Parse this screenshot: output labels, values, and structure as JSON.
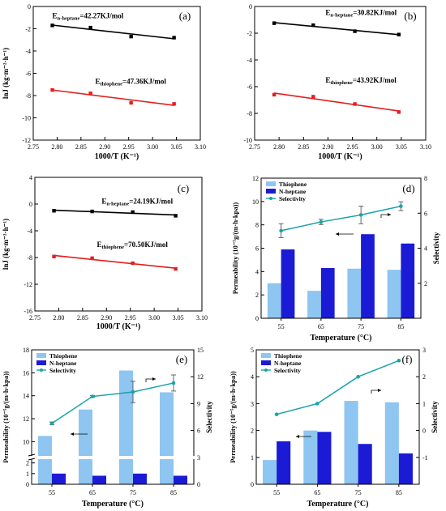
{
  "chart_data": [
    {
      "panel": "(a)",
      "type": "scatter",
      "xlabel": "1000/T (K⁻¹)",
      "ylabel": "lnJ (kg·m⁻²·h⁻¹)",
      "xlim": [
        2.75,
        3.1
      ],
      "ylim": [
        -12,
        0
      ],
      "xticks": [
        "2.75",
        "2.80",
        "2.85",
        "2.90",
        "2.95",
        "3.00",
        "3.05",
        "3.10"
      ],
      "yticks": [
        "0",
        "-2",
        "-4",
        "-6",
        "-8",
        "-10",
        "-12"
      ],
      "series": [
        {
          "color": "#000000",
          "x": [
            2.79,
            2.87,
            2.955,
            3.045
          ],
          "y": [
            -1.7,
            -1.9,
            -2.7,
            -2.8
          ],
          "label_main": "E",
          "label_sub": "n-heptane",
          "label_rest": "=42.27KJ/mol",
          "lx": 2.79,
          "ly": -1.05
        },
        {
          "color": "#e51d1d",
          "x": [
            2.79,
            2.87,
            2.955,
            3.045
          ],
          "y": [
            -7.5,
            -7.8,
            -8.65,
            -8.75
          ],
          "label_main": "E",
          "label_sub": "thiophene",
          "label_rest": "=47.36KJ/mol",
          "lx": 2.88,
          "ly": -6.95
        }
      ]
    },
    {
      "panel": "(b)",
      "type": "scatter",
      "xlabel": "1000/T (K⁻¹)",
      "ylabel": "",
      "xlim": [
        2.75,
        3.1
      ],
      "ylim": [
        -10,
        0
      ],
      "xticks": [
        "2.75",
        "2.80",
        "2.85",
        "2.90",
        "2.95",
        "3.00",
        "3.05",
        "3.10"
      ],
      "yticks": [
        "0",
        "-2",
        "-4",
        "-6",
        "-8",
        "-10"
      ],
      "series": [
        {
          "color": "#000000",
          "x": [
            2.79,
            2.87,
            2.955,
            3.045
          ],
          "y": [
            -1.25,
            -1.4,
            -1.85,
            -2.1
          ],
          "label_main": "E",
          "label_sub": "n-heptane",
          "label_rest": "=30.82KJ/mol",
          "lx": 2.895,
          "ly": -0.65
        },
        {
          "color": "#e51d1d",
          "x": [
            2.79,
            2.87,
            2.955,
            3.045
          ],
          "y": [
            -6.6,
            -6.75,
            -7.3,
            -7.9
          ],
          "label_main": "E",
          "label_sub": "thiophene",
          "label_rest": "=43.92KJ/mol",
          "lx": 2.895,
          "ly": -5.7
        }
      ]
    },
    {
      "panel": "(c)",
      "type": "scatter",
      "xlabel": "1000/T (K⁻¹)",
      "ylabel": "lnJ (kg·m⁻²·h⁻¹)",
      "xlim": [
        2.75,
        3.1
      ],
      "ylim": [
        -16,
        4
      ],
      "xticks": [
        "2.75",
        "2.80",
        "2.85",
        "2.90",
        "2.95",
        "3.00",
        "3.05",
        "3.10"
      ],
      "yticks": [
        "4",
        "0",
        "-4",
        "-8",
        "-12",
        "-16"
      ],
      "series": [
        {
          "color": "#000000",
          "x": [
            2.79,
            2.87,
            2.955,
            3.045
          ],
          "y": [
            -1.0,
            -1.1,
            -1.2,
            -1.75
          ],
          "label_main": "E",
          "label_sub": "n-heptane",
          "label_rest": "=24.19KJ/mol",
          "lx": 2.89,
          "ly": 0.05
        },
        {
          "color": "#e51d1d",
          "x": [
            2.79,
            2.87,
            2.955,
            3.045
          ],
          "y": [
            -7.85,
            -8.1,
            -8.85,
            -9.7
          ],
          "label_main": "E",
          "label_sub": "thiophene",
          "label_rest": "=70.50KJ/mol",
          "lx": 2.88,
          "ly": -6.4
        }
      ]
    },
    {
      "panel": "(d)",
      "type": "bar",
      "xlabel": "Temperature (°C)",
      "ylabel": "Permeability (10⁻⁵g/(m·h·kpa))",
      "y2label": "Selectivity",
      "categories": [
        "55",
        "65",
        "75",
        "85"
      ],
      "ylim": [
        0,
        12
      ],
      "yticks": [
        "0",
        "2",
        "4",
        "6",
        "8",
        "10",
        "12"
      ],
      "y2lim": [
        0,
        8
      ],
      "y2ticks": [
        "2",
        "4",
        "6",
        "8"
      ],
      "legend": [
        "Thiophene",
        "N-heptane",
        "Selectivity"
      ],
      "series": [
        {
          "name": "Thiophene",
          "color": "#8ec5f1",
          "values": [
            3.0,
            2.35,
            4.25,
            4.15
          ]
        },
        {
          "name": "N-heptane",
          "color": "#1b1bd6",
          "values": [
            5.9,
            4.3,
            7.2,
            6.4
          ]
        },
        {
          "name": "Selectivity",
          "color": "#1aa3a8",
          "values": [
            5.0,
            5.5,
            5.9,
            6.4
          ],
          "err": [
            0.4,
            0.15,
            0.5,
            0.25
          ]
        }
      ]
    },
    {
      "panel": "(e)",
      "type": "bar",
      "xlabel": "Temperature (°C)",
      "ylabel": "Permeability (10⁻⁵g/(m·h·kpa))",
      "y2label": "Selectivity",
      "categories": [
        "55",
        "65",
        "75",
        "85"
      ],
      "yticks_upper": [
        "10",
        "12",
        "14",
        "16",
        "18"
      ],
      "yticks_lower": [
        "0",
        "1",
        "2"
      ],
      "y2lim": [
        0,
        15
      ],
      "y2ticks": [
        "0",
        "3",
        "6",
        "9",
        "12",
        "15"
      ],
      "legend": [
        "Thiophene",
        "N-heptane",
        "Selectivity"
      ],
      "series": [
        {
          "name": "Thiophene",
          "color": "#8ec5f1",
          "values": [
            10.5,
            12.8,
            16.2,
            14.3
          ]
        },
        {
          "name": "N-heptane",
          "color": "#1b1bd6",
          "values": [
            1.0,
            0.8,
            1.0,
            0.8
          ]
        },
        {
          "name": "Selectivity",
          "color": "#1aa3a8",
          "values": [
            6.8,
            9.8,
            10.3,
            11.3
          ],
          "err": [
            0.15,
            0.1,
            1.2,
            0.9
          ]
        }
      ]
    },
    {
      "panel": "(f)",
      "type": "bar",
      "xlabel": "Temperature (°C)",
      "ylabel": "Permeability (10⁻⁵g/(m·h·kpa))",
      "y2label": "Selectivity",
      "categories": [
        "55",
        "65",
        "75",
        "85"
      ],
      "ylim": [
        0,
        5
      ],
      "yticks": [
        "0",
        "1",
        "2",
        "3",
        "4",
        "5"
      ],
      "y2lim": [
        -2,
        3
      ],
      "y2ticks": [
        "-1",
        "0",
        "1",
        "2",
        "3"
      ],
      "legend": [
        "Thiophene",
        "N-heptane",
        "Selectivity"
      ],
      "series": [
        {
          "name": "Thiophene",
          "color": "#8ec5f1",
          "values": [
            0.9,
            2.0,
            3.1,
            3.05
          ]
        },
        {
          "name": "N-heptane",
          "color": "#1b1bd6",
          "values": [
            1.6,
            1.95,
            1.5,
            1.15
          ]
        },
        {
          "name": "Selectivity",
          "color": "#1aa3a8",
          "values": [
            0.6,
            1.0,
            2.0,
            2.6
          ]
        }
      ]
    }
  ]
}
